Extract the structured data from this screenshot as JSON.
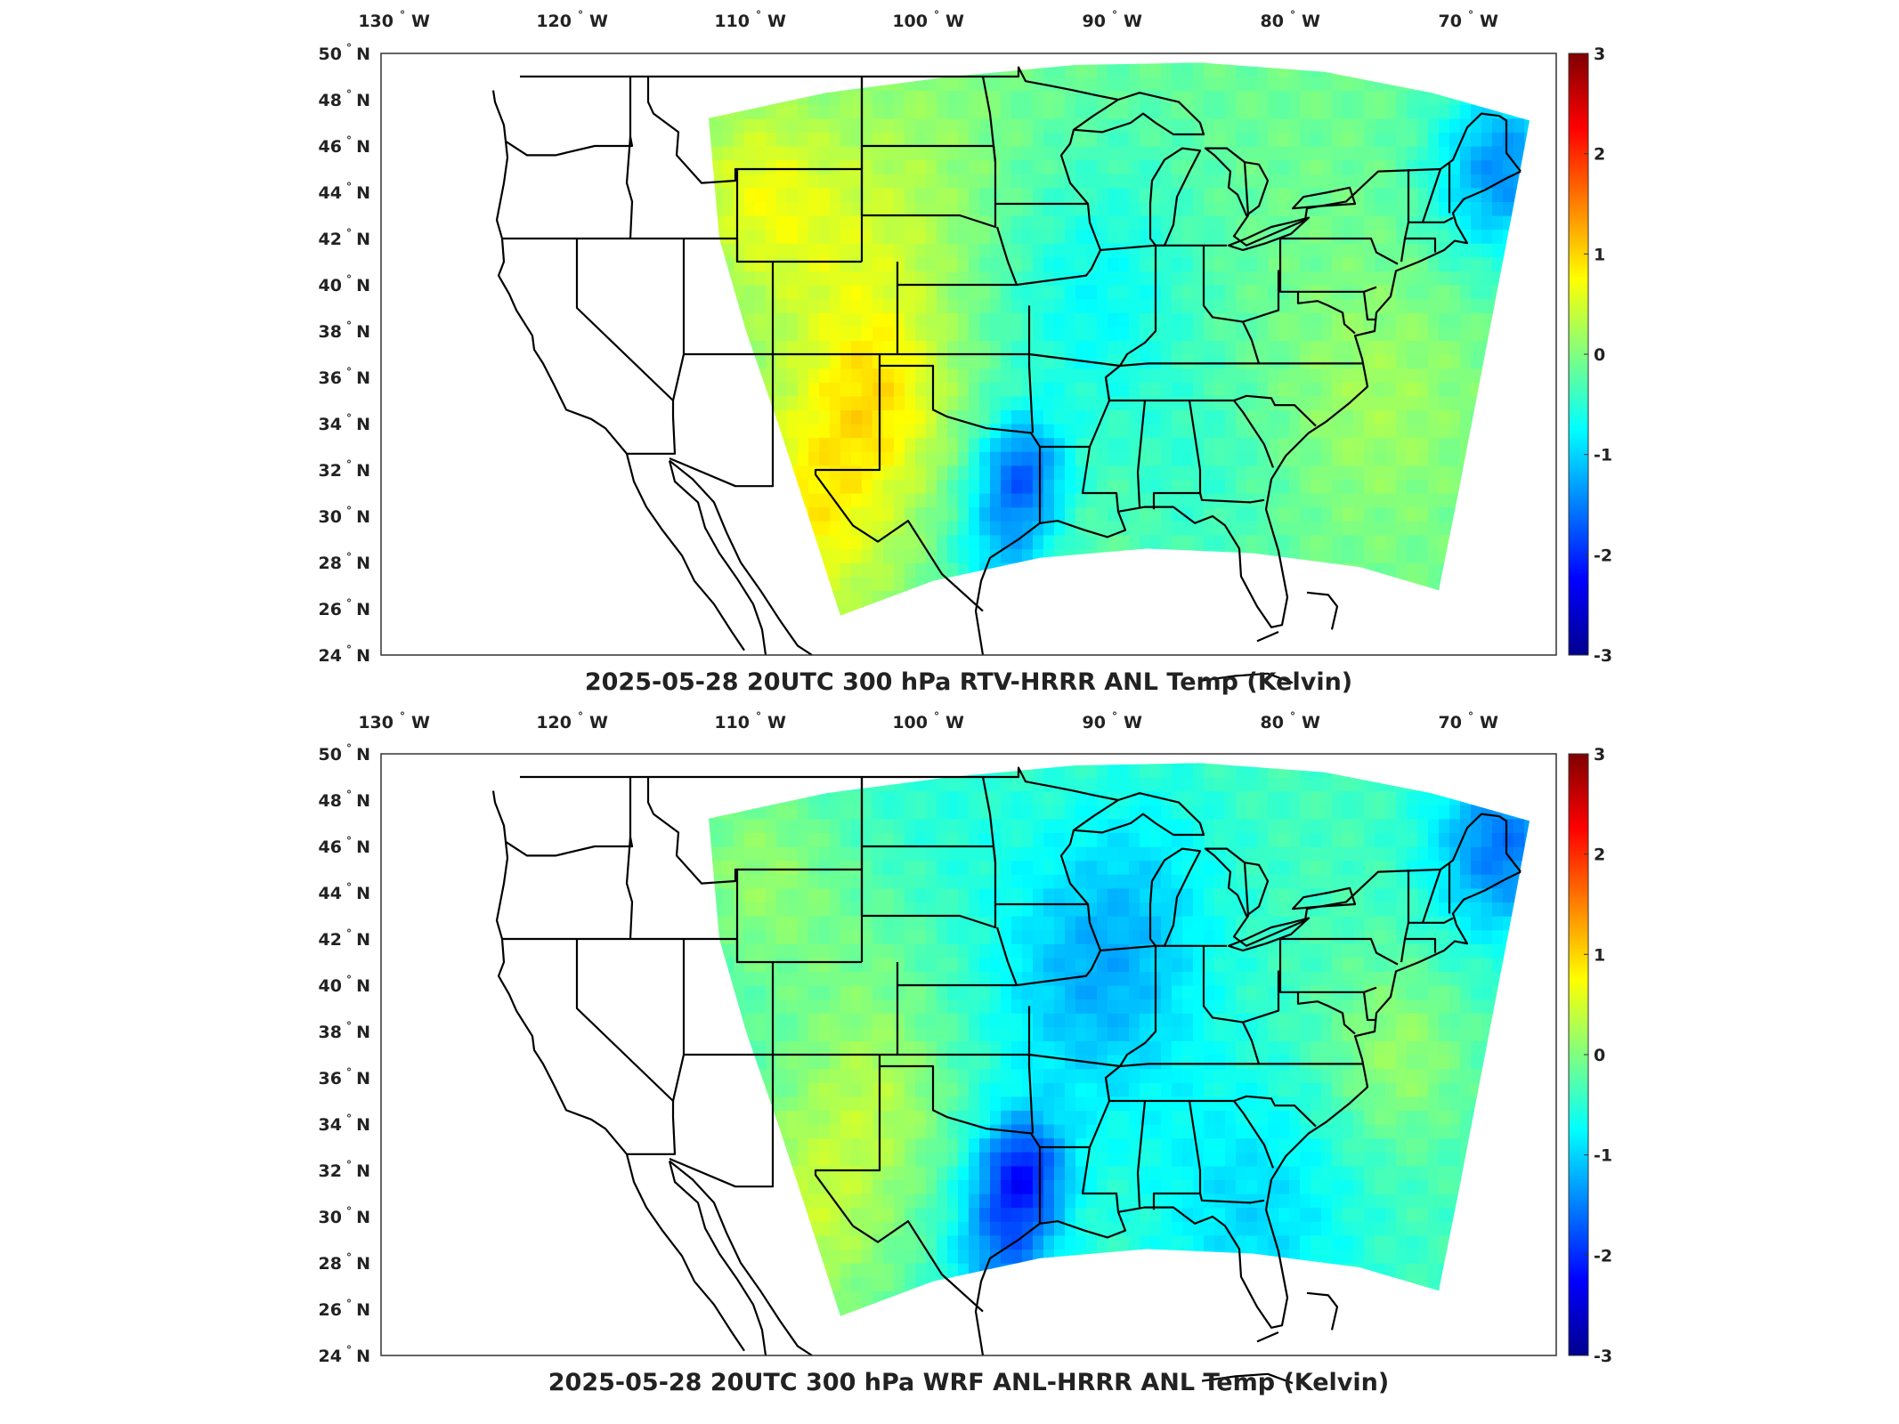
{
  "panels": [
    {
      "title": "2025-05-28 20UTC 300 hPa RTV-HRRR ANL Temp (Kelvin)",
      "variant": "rtv",
      "lon_ticks": [
        {
          "value": -130,
          "num": "130",
          "deg": "°",
          "hemi": "W"
        },
        {
          "value": -120,
          "num": "120",
          "deg": "°",
          "hemi": "W"
        },
        {
          "value": -110,
          "num": "110",
          "deg": "°",
          "hemi": "W"
        },
        {
          "value": -100,
          "num": "100",
          "deg": "°",
          "hemi": "W"
        },
        {
          "value": -90,
          "num": "90",
          "deg": "°",
          "hemi": "W"
        },
        {
          "value": -80,
          "num": "80",
          "deg": "°",
          "hemi": "W"
        },
        {
          "value": -70,
          "num": "70",
          "deg": "°",
          "hemi": "W"
        }
      ],
      "lat_ticks": [
        {
          "value": 50,
          "num": "50",
          "deg": "°",
          "hemi": "N"
        },
        {
          "value": 48,
          "num": "48",
          "deg": "°",
          "hemi": "N"
        },
        {
          "value": 46,
          "num": "46",
          "deg": "°",
          "hemi": "N"
        },
        {
          "value": 44,
          "num": "44",
          "deg": "°",
          "hemi": "N"
        },
        {
          "value": 42,
          "num": "42",
          "deg": "°",
          "hemi": "N"
        },
        {
          "value": 40,
          "num": "40",
          "deg": "°",
          "hemi": "N"
        },
        {
          "value": 38,
          "num": "38",
          "deg": "°",
          "hemi": "N"
        },
        {
          "value": 36,
          "num": "36",
          "deg": "°",
          "hemi": "N"
        },
        {
          "value": 34,
          "num": "34",
          "deg": "°",
          "hemi": "N"
        },
        {
          "value": 32,
          "num": "32",
          "deg": "°",
          "hemi": "N"
        },
        {
          "value": 30,
          "num": "30",
          "deg": "°",
          "hemi": "N"
        },
        {
          "value": 28,
          "num": "28",
          "deg": "°",
          "hemi": "N"
        },
        {
          "value": 26,
          "num": "26",
          "deg": "°",
          "hemi": "N"
        },
        {
          "value": 24,
          "num": "24",
          "deg": "°",
          "hemi": "N"
        }
      ],
      "colorbar_ticks": [
        "3",
        "2",
        "1",
        "0",
        "-1",
        "-2",
        "-3"
      ],
      "colorbar_range": [
        -3,
        3
      ]
    },
    {
      "title": "2025-05-28 20UTC 300 hPa WRF ANL-HRRR ANL Temp (Kelvin)",
      "variant": "wrf",
      "lon_ticks": [
        {
          "value": -130,
          "num": "130",
          "deg": "°",
          "hemi": "W"
        },
        {
          "value": -120,
          "num": "120",
          "deg": "°",
          "hemi": "W"
        },
        {
          "value": -110,
          "num": "110",
          "deg": "°",
          "hemi": "W"
        },
        {
          "value": -100,
          "num": "100",
          "deg": "°",
          "hemi": "W"
        },
        {
          "value": -90,
          "num": "90",
          "deg": "°",
          "hemi": "W"
        },
        {
          "value": -80,
          "num": "80",
          "deg": "°",
          "hemi": "W"
        },
        {
          "value": -70,
          "num": "70",
          "deg": "°",
          "hemi": "W"
        }
      ],
      "lat_ticks": [
        {
          "value": 50,
          "num": "50",
          "deg": "°",
          "hemi": "N"
        },
        {
          "value": 48,
          "num": "48",
          "deg": "°",
          "hemi": "N"
        },
        {
          "value": 46,
          "num": "46",
          "deg": "°",
          "hemi": "N"
        },
        {
          "value": 44,
          "num": "44",
          "deg": "°",
          "hemi": "N"
        },
        {
          "value": 42,
          "num": "42",
          "deg": "°",
          "hemi": "N"
        },
        {
          "value": 40,
          "num": "40",
          "deg": "°",
          "hemi": "N"
        },
        {
          "value": 38,
          "num": "38",
          "deg": "°",
          "hemi": "N"
        },
        {
          "value": 36,
          "num": "36",
          "deg": "°",
          "hemi": "N"
        },
        {
          "value": 34,
          "num": "34",
          "deg": "°",
          "hemi": "N"
        },
        {
          "value": 32,
          "num": "32",
          "deg": "°",
          "hemi": "N"
        },
        {
          "value": 30,
          "num": "30",
          "deg": "°",
          "hemi": "N"
        },
        {
          "value": 28,
          "num": "28",
          "deg": "°",
          "hemi": "N"
        },
        {
          "value": 26,
          "num": "26",
          "deg": "°",
          "hemi": "N"
        },
        {
          "value": 24,
          "num": "24",
          "deg": "°",
          "hemi": "N"
        }
      ],
      "colorbar_ticks": [
        "3",
        "2",
        "1",
        "0",
        "-1",
        "-2",
        "-3"
      ],
      "colorbar_range": [
        -3,
        3
      ]
    }
  ],
  "colormap": "jet",
  "colormap_stops": [
    "#00008f",
    "#0000ff",
    "#0080ff",
    "#00ffff",
    "#80ff80",
    "#ffff00",
    "#ff8000",
    "#ff0000",
    "#800000"
  ]
}
